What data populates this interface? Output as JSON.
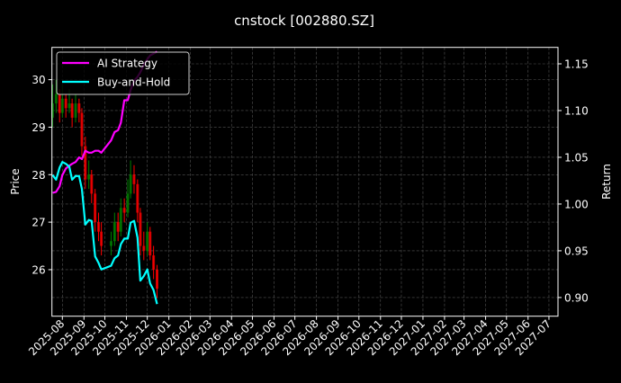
{
  "chart_data": {
    "type": "line",
    "title": "cnstock [002880.SZ]",
    "ylabel_left": "Price",
    "ylabel_right": "Return",
    "xlim": [
      "2025-07-17",
      "2027-07-14"
    ],
    "ylim_left": [
      25.02,
      30.68
    ],
    "ylim_right": [
      0.88,
      1.1676
    ],
    "yticks_left": [
      26,
      27,
      28,
      29,
      30
    ],
    "yticks_right": [
      "0.90",
      "0.95",
      "1.00",
      "1.05",
      "1.10",
      "1.15"
    ],
    "xticks": [
      "2025-08",
      "2025-09",
      "2025-10",
      "2025-11",
      "2025-12",
      "2026-01",
      "2026-02",
      "2026-03",
      "2026-04",
      "2026-05",
      "2026-06",
      "2026-07",
      "2026-08",
      "2026-09",
      "2026-10",
      "2026-11",
      "2026-12",
      "2027-01",
      "2027-02",
      "2027-03",
      "2027-04",
      "2027-05",
      "2027-06",
      "2027-07"
    ],
    "grid": true,
    "legend_placement": "top-left",
    "colors": {
      "up": "#008000",
      "down": "#ff0000",
      "ai": "#ff00ff",
      "bh": "#00ffff",
      "background": "#000000",
      "grid": "#555555"
    },
    "dates": [
      "2025-07-18",
      "2025-07-23",
      "2025-07-28",
      "2025-08-01",
      "2025-08-06",
      "2025-08-11",
      "2025-08-15",
      "2025-08-20",
      "2025-08-25",
      "2025-08-29",
      "2025-09-03",
      "2025-09-08",
      "2025-09-12",
      "2025-09-17",
      "2025-09-22",
      "2025-09-26",
      "2025-10-10",
      "2025-10-15",
      "2025-10-20",
      "2025-10-24",
      "2025-10-29",
      "2025-11-03",
      "2025-11-07",
      "2025-11-12",
      "2025-11-17",
      "2025-11-21",
      "2025-11-26",
      "2025-12-01",
      "2025-12-05",
      "2025-12-10",
      "2025-12-15"
    ],
    "price": {
      "open": [
        29.2,
        29.5,
        29.7,
        29.3,
        29.6,
        29.4,
        29.5,
        29.2,
        29.5,
        29.3,
        28.6,
        27.9,
        28.0,
        27.6,
        27.0,
        26.8,
        26.5,
        26.6,
        27.0,
        26.8,
        27.3,
        27.2,
        27.6,
        28.0,
        27.8,
        27.2,
        26.5,
        26.4,
        26.8,
        26.3,
        26.0
      ],
      "high": [
        29.9,
        30.0,
        29.8,
        29.9,
        29.7,
        29.8,
        29.6,
        29.7,
        29.6,
        29.4,
        28.8,
        28.3,
        28.1,
        27.7,
        27.2,
        27.0,
        26.8,
        27.2,
        27.2,
        27.5,
        27.5,
        27.9,
        28.3,
        28.2,
        27.9,
        27.3,
        26.8,
        27.0,
        26.9,
        26.5,
        26.1
      ],
      "low": [
        29.0,
        29.3,
        29.1,
        29.2,
        29.2,
        29.3,
        29.0,
        29.1,
        29.1,
        28.4,
        27.7,
        27.7,
        27.4,
        26.8,
        26.6,
        26.3,
        26.3,
        26.5,
        26.6,
        26.7,
        27.0,
        27.1,
        27.5,
        27.6,
        27.0,
        26.3,
        26.2,
        26.3,
        26.2,
        25.8,
        25.4
      ],
      "close": [
        29.5,
        29.7,
        29.3,
        29.6,
        29.4,
        29.5,
        29.2,
        29.5,
        29.3,
        28.6,
        27.9,
        28.0,
        27.6,
        27.0,
        26.8,
        26.5,
        26.6,
        27.0,
        26.8,
        27.3,
        27.2,
        27.6,
        28.0,
        27.8,
        27.2,
        26.5,
        26.4,
        26.8,
        26.3,
        26.0,
        25.6
      ]
    },
    "series": [
      {
        "name": "AI Strategy",
        "values": [
          1.012,
          1.013,
          1.019,
          1.031,
          1.038,
          1.041,
          1.043,
          1.045,
          1.05,
          1.048,
          1.057,
          1.055,
          1.055,
          1.057,
          1.057,
          1.055,
          1.068,
          1.077,
          1.079,
          1.087,
          1.111,
          1.111,
          1.122,
          1.132,
          1.136,
          1.141,
          1.149,
          1.155,
          1.159,
          1.161,
          1.163
        ]
      },
      {
        "name": "Buy-and-Hold",
        "values": [
          1.031,
          1.026,
          1.039,
          1.045,
          1.043,
          1.04,
          1.026,
          1.03,
          1.03,
          1.016,
          0.978,
          0.983,
          0.982,
          0.944,
          0.937,
          0.93,
          0.934,
          0.942,
          0.945,
          0.957,
          0.963,
          0.963,
          0.98,
          0.982,
          0.964,
          0.918,
          0.923,
          0.93,
          0.915,
          0.908,
          0.893
        ]
      }
    ]
  }
}
